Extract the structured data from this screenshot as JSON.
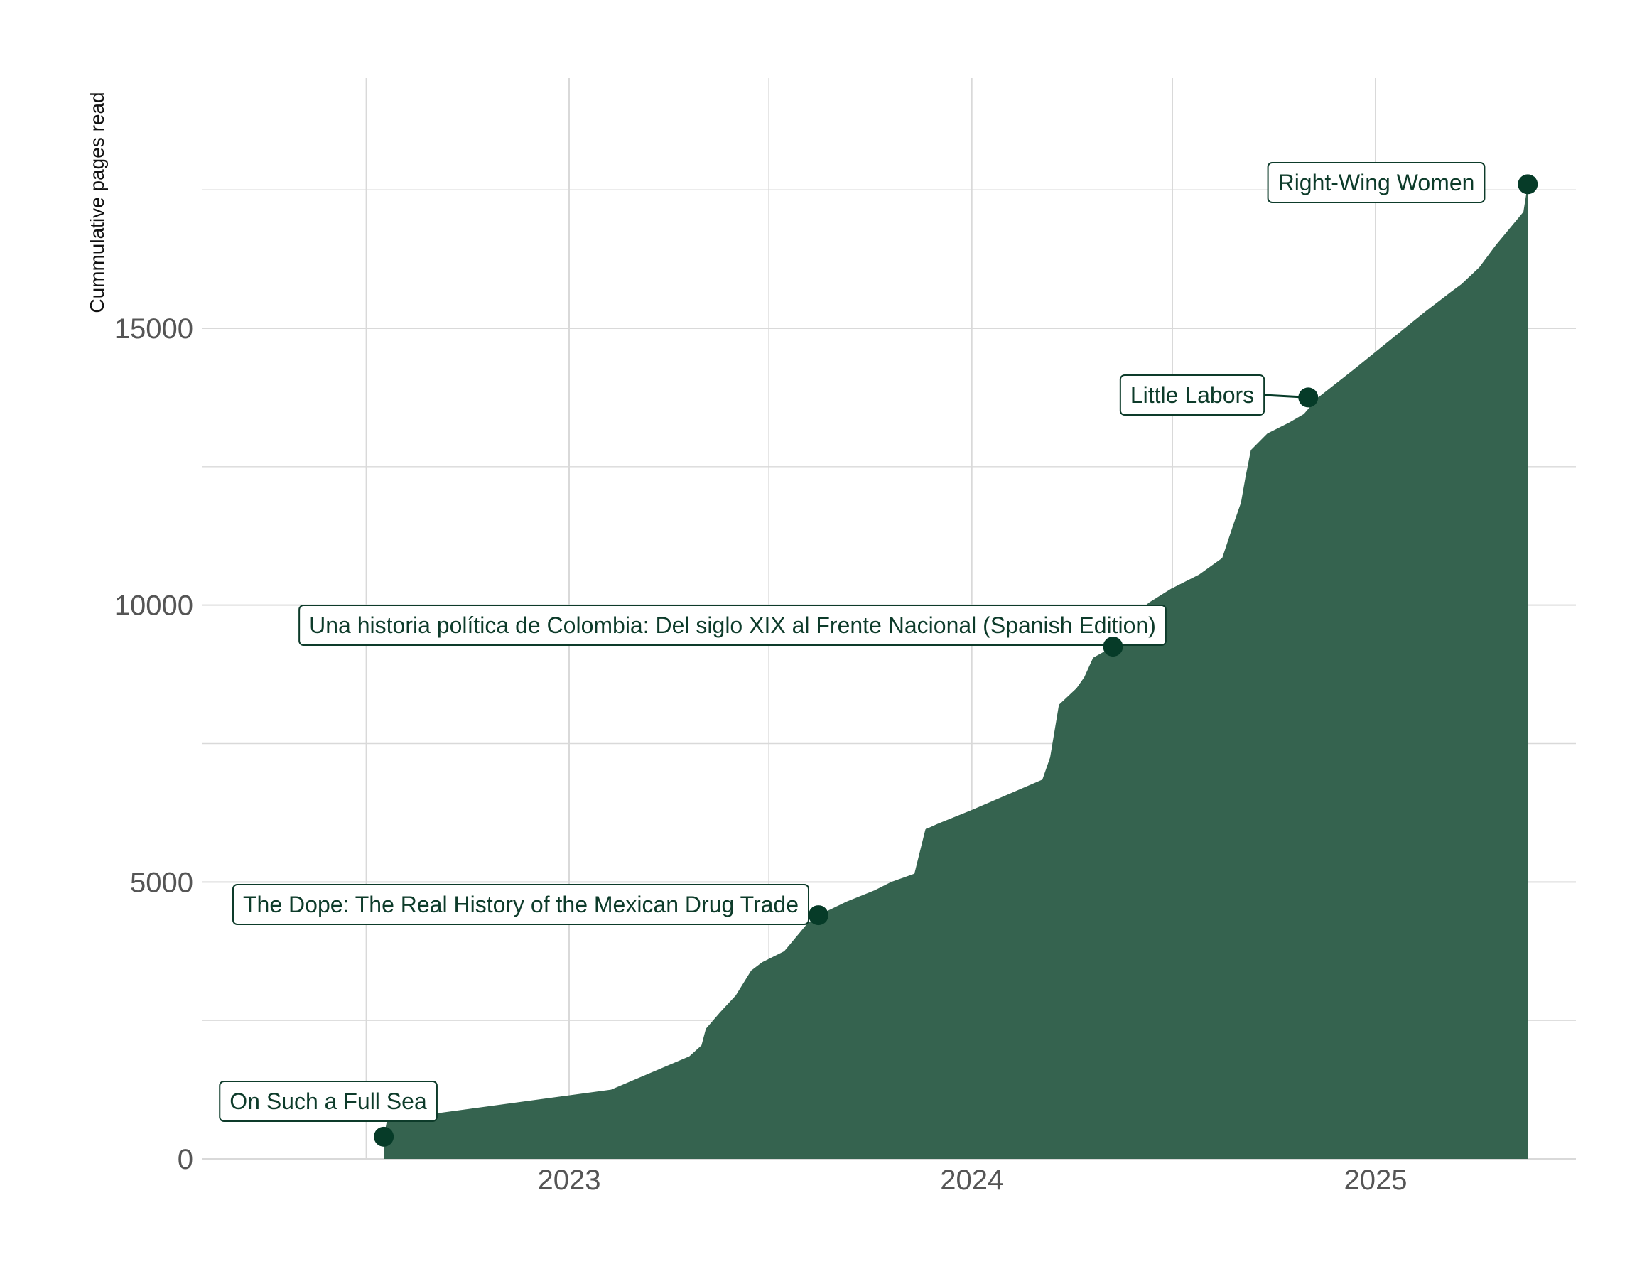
{
  "colors": {
    "area": "#35634f",
    "point": "#063b28",
    "label_text": "#0d3b2a",
    "grid": "#d9d9d9",
    "tick_text": "#555555"
  },
  "chart_data": {
    "type": "area",
    "title": "",
    "xlabel": "",
    "ylabel": "Cummulative pages read",
    "x_type": "date",
    "xlim": [
      "2022-03-01",
      "2025-07-01"
    ],
    "ylim": [
      0,
      19000
    ],
    "x_ticks": [
      "2023",
      "2024",
      "2025"
    ],
    "y_ticks": [
      0,
      5000,
      10000,
      15000
    ],
    "grid": true,
    "legend": "none",
    "series": [
      {
        "x": [
          "2022-07-17",
          "2022-07-20",
          "2023-02-08",
          "2023-04-20",
          "2023-05-01",
          "2023-05-05",
          "2023-05-18",
          "2023-06-01",
          "2023-06-15",
          "2023-06-25",
          "2023-07-15",
          "2023-08-05",
          "2023-08-15",
          "2023-09-10",
          "2023-10-05",
          "2023-10-20",
          "2023-11-10",
          "2023-11-20",
          "2023-12-01",
          "2024-01-01",
          "2024-02-05",
          "2024-03-05",
          "2024-03-12",
          "2024-03-20",
          "2024-04-05",
          "2024-04-12",
          "2024-04-20",
          "2024-05-08",
          "2024-05-25",
          "2024-06-10",
          "2024-06-30",
          "2024-07-25",
          "2024-08-15",
          "2024-08-25",
          "2024-09-01",
          "2024-09-05",
          "2024-09-10",
          "2024-09-25",
          "2024-10-15",
          "2024-10-28",
          "2024-11-10",
          "2024-12-15",
          "2025-01-15",
          "2025-02-15",
          "2025-03-10",
          "2025-03-20",
          "2025-04-05",
          "2025-04-20",
          "2025-05-15",
          "2025-05-19"
        ],
        "y": [
          400,
          700,
          1250,
          1850,
          2050,
          2350,
          2650,
          2950,
          3400,
          3550,
          3750,
          4250,
          4400,
          4650,
          4850,
          5000,
          5150,
          5950,
          6050,
          6300,
          6600,
          6850,
          7250,
          8200,
          8500,
          8700,
          9050,
          9250,
          9800,
          10050,
          10300,
          10550,
          10850,
          11450,
          11850,
          12300,
          12800,
          13100,
          13300,
          13450,
          13750,
          14300,
          14800,
          15300,
          15650,
          15800,
          16100,
          16500,
          17100,
          17600
        ]
      }
    ],
    "annotations": [
      {
        "label": "On Such a Full Sea",
        "x": "2022-07-17",
        "y": 400
      },
      {
        "label": "The Dope: The Real History of the Mexican Drug Trade",
        "x": "2023-08-15",
        "y": 4400
      },
      {
        "label": "Una historia política de Colombia: Del siglo XIX al Frente Nacional (Spanish Edition)",
        "x": "2024-05-08",
        "y": 9250
      },
      {
        "label": "Little Labors",
        "x": "2024-11-01",
        "y": 13750
      },
      {
        "label": "Right-Wing Women",
        "x": "2025-05-19",
        "y": 17600
      }
    ]
  }
}
